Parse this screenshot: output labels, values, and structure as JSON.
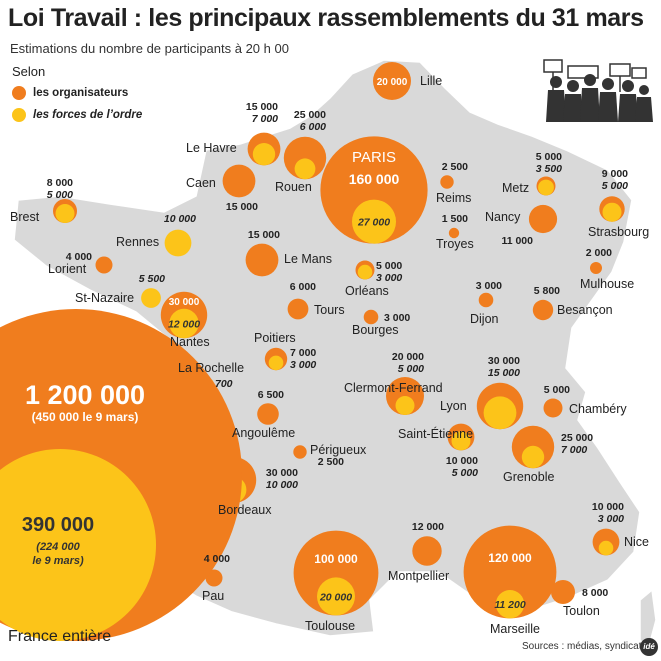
{
  "title": "Loi Travail : les principaux rassemblements du 31 mars",
  "subtitle": "Estimations du nombre de participants à 20 h 00",
  "legend": {
    "heading": "Selon",
    "organisers": "les organisateurs",
    "police": "les forces de l’ordre",
    "organisers_color": "#f07d1e",
    "police_color": "#fcc419"
  },
  "national": {
    "label": "France entière",
    "organisers": "1 200 000",
    "organisers_prev": "(450 000 le 9 mars)",
    "police": "390 000",
    "police_prev_1": "(224 000",
    "police_prev_2": "le 9 mars)"
  },
  "source": "Sources : médias, syndicats",
  "logo": "idé",
  "cities": [
    {
      "name": "Lille",
      "org": "20 000",
      "org_n": 20000
    },
    {
      "name": "Le Havre",
      "org": "15 000",
      "org_n": 15000,
      "police": "7 000",
      "police_n": 7000
    },
    {
      "name": "Rouen",
      "org": "25 000",
      "org_n": 25000,
      "police": "6 000",
      "police_n": 6000
    },
    {
      "name": "PARIS",
      "org": "160 000",
      "org_n": 160000,
      "police": "27 000",
      "police_n": 27000
    },
    {
      "name": "Caen",
      "org": "15 000",
      "org_n": 15000
    },
    {
      "name": "Reims",
      "org": "2 500",
      "org_n": 2500
    },
    {
      "name": "Metz",
      "org": "5 000",
      "org_n": 5000,
      "police": "3 500",
      "police_n": 3500
    },
    {
      "name": "Strasbourg",
      "org": "9 000",
      "org_n": 9000,
      "police": "5 000",
      "police_n": 5000
    },
    {
      "name": "Brest",
      "org": "8 000",
      "org_n": 8000,
      "police": "5 000",
      "police_n": 5000
    },
    {
      "name": "Troyes",
      "org": "1 500",
      "org_n": 1500
    },
    {
      "name": "Nancy",
      "org": "11 000",
      "org_n": 11000
    },
    {
      "name": "Rennes",
      "police": "10 000",
      "police_n": 10000
    },
    {
      "name": "Le Mans",
      "org": "15 000",
      "org_n": 15000
    },
    {
      "name": "Lorient",
      "org": "4 000",
      "org_n": 4000
    },
    {
      "name": "Mulhouse",
      "org": "2 000",
      "org_n": 2000
    },
    {
      "name": "Orléans",
      "org": "5 000",
      "org_n": 5000,
      "police": "3 000",
      "police_n": 3000
    },
    {
      "name": "St-Nazaire",
      "police": "5 500",
      "police_n": 5500
    },
    {
      "name": "Tours",
      "org": "6 000",
      "org_n": 6000
    },
    {
      "name": "Dijon",
      "org": "3 000",
      "org_n": 3000
    },
    {
      "name": "Besançon",
      "org": "5 800",
      "org_n": 5800
    },
    {
      "name": "Nantes",
      "org": "30 000",
      "org_n": 30000,
      "police": "12 000",
      "police_n": 12000
    },
    {
      "name": "Bourges",
      "org": "3 000",
      "org_n": 3000
    },
    {
      "name": "Poitiers",
      "org": "7 000",
      "org_n": 7000,
      "police": "3 000",
      "police_n": 3000
    },
    {
      "name": "La Rochelle",
      "police": "700",
      "police_n": 700
    },
    {
      "name": "Clermont-Ferrand",
      "org": "20 000",
      "org_n": 20000,
      "police": "5 000",
      "police_n": 5000
    },
    {
      "name": "Lyon",
      "org": "30 000",
      "org_n": 30000,
      "police": "15 000",
      "police_n": 15000
    },
    {
      "name": "Chambéry",
      "org": "5 000",
      "org_n": 5000
    },
    {
      "name": "Angoulême",
      "org": "6 500",
      "org_n": 6500
    },
    {
      "name": "Saint-Étienne",
      "org": "10 000",
      "org_n": 10000,
      "police": "5 000",
      "police_n": 5000
    },
    {
      "name": "Grenoble",
      "org": "25 000",
      "org_n": 25000,
      "police": "7 000",
      "police_n": 7000
    },
    {
      "name": "Périgueux",
      "org": "2 500",
      "org_n": 2500
    },
    {
      "name": "Bordeaux",
      "org": "30 000",
      "org_n": 30000,
      "police": "10 000",
      "police_n": 10000
    },
    {
      "name": "Nice",
      "org": "10 000",
      "org_n": 10000,
      "police": "3 000",
      "police_n": 3000
    },
    {
      "name": "Montpellier",
      "org": "12 000",
      "org_n": 12000
    },
    {
      "name": "Marseille",
      "org": "120 000",
      "org_n": 120000,
      "police": "11 200",
      "police_n": 11200
    },
    {
      "name": "Toulouse",
      "org": "100 000",
      "org_n": 100000,
      "police": "20 000",
      "police_n": 20000
    },
    {
      "name": "Pau",
      "org": "4 000",
      "org_n": 4000
    },
    {
      "name": "Toulon",
      "org": "8 000",
      "org_n": 8000
    }
  ]
}
